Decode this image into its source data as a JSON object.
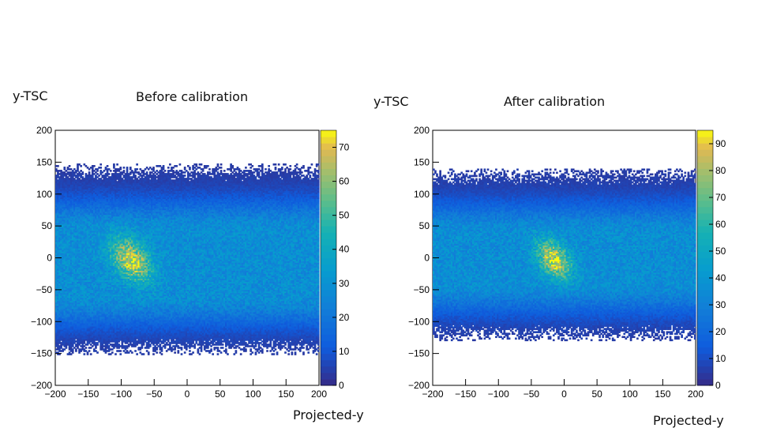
{
  "chart_data": [
    {
      "type": "heatmap",
      "title": "Before calibration",
      "ylabel": "y-TSC",
      "xlabel": "Projected-y",
      "xlim": [
        -200,
        200
      ],
      "ylim": [
        -200,
        200
      ],
      "zlim": [
        0,
        75
      ],
      "x_ticks": [
        "−200",
        "−150",
        "−100",
        "−50",
        "0",
        "50",
        "100",
        "150",
        "200"
      ],
      "y_ticks": [
        "200",
        "150",
        "100",
        "50",
        "0",
        "−50",
        "−100",
        "−150",
        "−200"
      ],
      "z_ticks": [
        "70",
        "60",
        "50",
        "40",
        "30",
        "20",
        "10",
        "0"
      ],
      "z_tick_values": [
        70,
        60,
        50,
        40,
        30,
        20,
        10,
        0
      ],
      "occupied_y_range": [
        -152,
        147
      ],
      "core_band_y_range": [
        -60,
        45
      ],
      "peak_region": {
        "x": [
          -120,
          -50
        ],
        "y": [
          -45,
          40
        ],
        "peak_counts": 70
      },
      "grid": false,
      "colorbar": "right"
    },
    {
      "type": "heatmap",
      "title": "After calibration",
      "ylabel": "y-TSC",
      "xlabel": "Projected-y",
      "xlim": [
        -200,
        200
      ],
      "ylim": [
        -200,
        200
      ],
      "zlim": [
        0,
        95
      ],
      "x_ticks": [
        "−200",
        "−150",
        "−100",
        "−50",
        "0",
        "50",
        "100",
        "150",
        "200"
      ],
      "y_ticks": [
        "200",
        "150",
        "100",
        "50",
        "0",
        "−50",
        "−100",
        "−150",
        "−200"
      ],
      "z_ticks": [
        "90",
        "80",
        "70",
        "60",
        "50",
        "40",
        "30",
        "20",
        "10",
        "0"
      ],
      "z_tick_values": [
        90,
        80,
        70,
        60,
        50,
        40,
        30,
        20,
        10,
        0
      ],
      "occupied_y_range": [
        -130,
        140
      ],
      "core_band_y_range": [
        -40,
        40
      ],
      "peak_region": {
        "x": [
          -45,
          15
        ],
        "y": [
          -40,
          35
        ],
        "peak_counts": 90
      },
      "grid": false,
      "colorbar": "right"
    }
  ]
}
